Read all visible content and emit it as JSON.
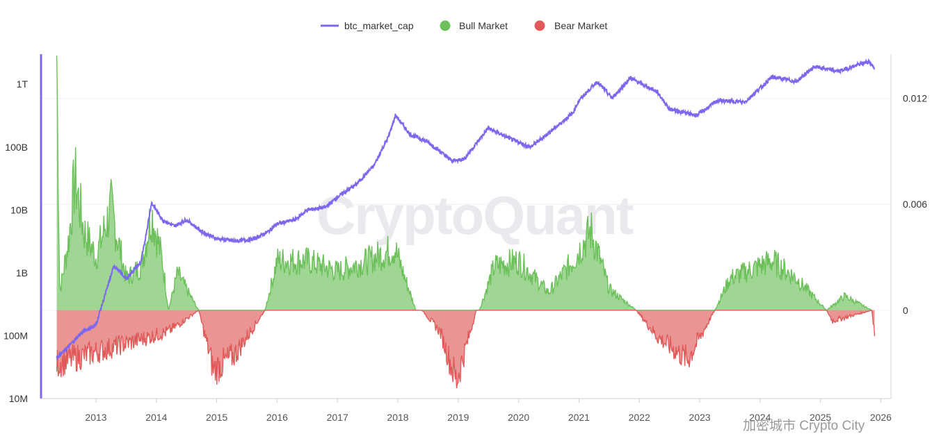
{
  "chart_data": {
    "type": "line+area",
    "title": "",
    "watermark": "CryptoQuant",
    "footer": "加密城市 Crypto City",
    "legend": [
      {
        "name": "btc_market_cap",
        "marker": "line",
        "color": "#7b68ee"
      },
      {
        "name": "Bull Market",
        "marker": "dot",
        "color": "#6cc05a"
      },
      {
        "name": "Bear Market",
        "marker": "dot",
        "color": "#e05a5a"
      }
    ],
    "x_ticks": [
      "2013",
      "2014",
      "2015",
      "2016",
      "2017",
      "2018",
      "2019",
      "2020",
      "2021",
      "2022",
      "2023",
      "2024",
      "2025",
      "2026"
    ],
    "left_axis": {
      "scale": "log",
      "range": [
        10000000,
        3000000000000
      ],
      "tick_values": [
        10000000,
        100000000,
        1000000000,
        10000000000,
        100000000000,
        1000000000000
      ],
      "tick_labels": [
        "10M",
        "100M",
        "1B",
        "10B",
        "100B",
        "1T"
      ]
    },
    "right_axis": {
      "scale": "linear",
      "range": [
        -0.005,
        0.0145
      ],
      "tick_values": [
        0,
        0.006,
        0.012
      ],
      "tick_labels": [
        "0",
        "0.006",
        "0.012"
      ]
    },
    "series": [
      {
        "name": "btc_market_cap",
        "axis": "left",
        "color": "#7b68ee",
        "points": [
          [
            2012.35,
            45000000
          ],
          [
            2012.5,
            60000000
          ],
          [
            2012.75,
            110000000
          ],
          [
            2013.0,
            150000000
          ],
          [
            2013.3,
            1300000000
          ],
          [
            2013.5,
            800000000
          ],
          [
            2013.75,
            1500000000
          ],
          [
            2013.92,
            13000000000
          ],
          [
            2014.1,
            7000000000
          ],
          [
            2014.3,
            5500000000
          ],
          [
            2014.5,
            7000000000
          ],
          [
            2014.75,
            4500000000
          ],
          [
            2015.0,
            3500000000
          ],
          [
            2015.3,
            3200000000
          ],
          [
            2015.6,
            3400000000
          ],
          [
            2015.85,
            4500000000
          ],
          [
            2016.0,
            6000000000
          ],
          [
            2016.3,
            7000000000
          ],
          [
            2016.5,
            10000000000
          ],
          [
            2016.8,
            11000000000
          ],
          [
            2017.0,
            16000000000
          ],
          [
            2017.3,
            25000000000
          ],
          [
            2017.6,
            50000000000
          ],
          [
            2017.85,
            150000000000
          ],
          [
            2017.96,
            320000000000
          ],
          [
            2018.2,
            160000000000
          ],
          [
            2018.5,
            120000000000
          ],
          [
            2018.9,
            60000000000
          ],
          [
            2019.1,
            65000000000
          ],
          [
            2019.5,
            200000000000
          ],
          [
            2019.9,
            130000000000
          ],
          [
            2020.2,
            100000000000
          ],
          [
            2020.6,
            200000000000
          ],
          [
            2020.9,
            350000000000
          ],
          [
            2021.0,
            550000000000
          ],
          [
            2021.3,
            1100000000000
          ],
          [
            2021.55,
            600000000000
          ],
          [
            2021.85,
            1250000000000
          ],
          [
            2022.3,
            750000000000
          ],
          [
            2022.5,
            400000000000
          ],
          [
            2022.95,
            320000000000
          ],
          [
            2023.3,
            550000000000
          ],
          [
            2023.75,
            520000000000
          ],
          [
            2024.2,
            1300000000000
          ],
          [
            2024.6,
            1100000000000
          ],
          [
            2024.9,
            1900000000000
          ],
          [
            2025.3,
            1600000000000
          ],
          [
            2025.8,
            2300000000000
          ],
          [
            2025.9,
            1800000000000
          ]
        ]
      },
      {
        "name": "Bull Market",
        "axis": "right",
        "color": "#6cc05a",
        "points": [
          [
            2012.35,
            0.0145
          ],
          [
            2012.4,
            0.001
          ],
          [
            2012.55,
            0.004
          ],
          [
            2012.65,
            0.0075
          ],
          [
            2012.8,
            0.0045
          ],
          [
            2013.0,
            0.003
          ],
          [
            2013.25,
            0.0058
          ],
          [
            2013.5,
            0.0018
          ],
          [
            2013.75,
            0.0025
          ],
          [
            2013.92,
            0.0055
          ],
          [
            2014.1,
            0.0028
          ],
          [
            2014.2,
            0.0
          ],
          [
            2014.35,
            0.0021
          ],
          [
            2014.7,
            0.0
          ],
          [
            2015.8,
            0.0
          ],
          [
            2016.0,
            0.0028
          ],
          [
            2016.5,
            0.0028
          ],
          [
            2017.0,
            0.0022
          ],
          [
            2017.5,
            0.0028
          ],
          [
            2017.95,
            0.0035
          ],
          [
            2018.3,
            0.0
          ],
          [
            2019.35,
            0.0
          ],
          [
            2019.6,
            0.0025
          ],
          [
            2020.0,
            0.0028
          ],
          [
            2020.5,
            0.001
          ],
          [
            2020.9,
            0.0028
          ],
          [
            2021.2,
            0.0045
          ],
          [
            2021.5,
            0.0012
          ],
          [
            2021.95,
            0.0
          ],
          [
            2023.25,
            0.0
          ],
          [
            2023.5,
            0.0018
          ],
          [
            2024.2,
            0.0028
          ],
          [
            2024.6,
            0.0018
          ],
          [
            2025.1,
            0.0
          ],
          [
            2025.4,
            0.0008
          ],
          [
            2025.85,
            0.0
          ]
        ]
      },
      {
        "name": "Bear Market",
        "axis": "right",
        "color": "#e05a5a",
        "points": [
          [
            2012.35,
            -0.003
          ],
          [
            2014.2,
            -0.0012
          ],
          [
            2014.7,
            0.0
          ],
          [
            2014.95,
            -0.0034
          ],
          [
            2015.3,
            -0.0025
          ],
          [
            2015.8,
            0.0
          ],
          [
            2018.4,
            0.0
          ],
          [
            2018.7,
            -0.0012
          ],
          [
            2018.97,
            -0.004
          ],
          [
            2019.3,
            0.0
          ],
          [
            2021.95,
            0.0
          ],
          [
            2022.3,
            -0.0015
          ],
          [
            2022.8,
            -0.0028
          ],
          [
            2023.25,
            0.0
          ],
          [
            2025.1,
            0.0
          ],
          [
            2025.2,
            -0.0006
          ],
          [
            2025.85,
            0.0
          ],
          [
            2025.9,
            -0.0014
          ]
        ]
      }
    ]
  }
}
